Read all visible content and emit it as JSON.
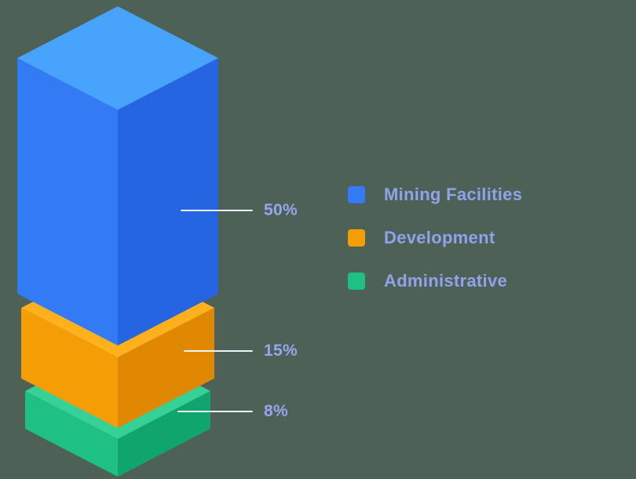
{
  "style": {
    "background": "#4e6156",
    "label_color": "#8fa2ea",
    "value_label_color": "#96a6ee",
    "leader_line_color": "#eef2fa"
  },
  "chart_data": {
    "type": "bar",
    "subtype": "isometric-stacked-column",
    "title": "",
    "legend": {
      "position": "right"
    },
    "segments": [
      {
        "label": "Mining Facilities",
        "value": 50,
        "value_label": "50%",
        "color": "#327bf4",
        "color_top": "#47a3fc",
        "color_side": "#2565e2"
      },
      {
        "label": "Development",
        "value": 15,
        "value_label": "15%",
        "color": "#f59d05",
        "color_top": "#ffb11d",
        "color_side": "#e08802"
      },
      {
        "label": "Administrative",
        "value": 8,
        "value_label": "8%",
        "color": "#1ec183",
        "color_top": "#35d196",
        "color_side": "#10a56c"
      }
    ]
  }
}
